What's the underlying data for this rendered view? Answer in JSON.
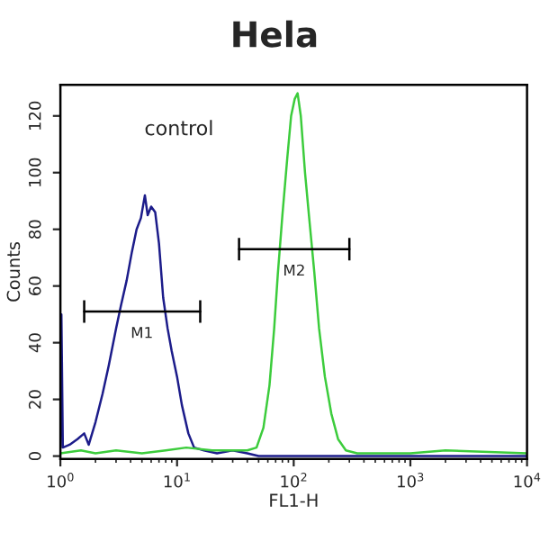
{
  "chart_data": {
    "type": "line",
    "title": "Hela",
    "xlabel": "FL1-H",
    "ylabel": "Counts",
    "log": "x",
    "grid": false,
    "legend": false,
    "xlim": [
      1,
      10000
    ],
    "xticks": [
      {
        "value": 1,
        "label": "10$^{0}$"
      },
      {
        "value": 10,
        "label": "10$^{1}$"
      },
      {
        "value": 100,
        "label": "10$^{2}$"
      },
      {
        "value": 1000,
        "label": "10$^{3}$"
      },
      {
        "value": 10000,
        "label": "10$^{4}$"
      }
    ],
    "ylim": [
      -1,
      131
    ],
    "yticks": [
      0,
      20,
      40,
      60,
      80,
      100,
      120
    ],
    "annotations": [
      "control",
      {
        "text": "M1",
        "x": 5,
        "y": 51
      },
      {
        "text": "M2",
        "x": 101,
        "y": 73
      }
    ],
    "series": [
      {
        "color": "#1c1c8a",
        "x": [
          1.0,
          1.02,
          1.05,
          1.2,
          1.4,
          1.6,
          1.75,
          2.0,
          2.3,
          2.6,
          3.0,
          3.3,
          3.7,
          4.1,
          4.5,
          4.9,
          5.3,
          5.6,
          6.0,
          6.5,
          7.0,
          7.6,
          8.3,
          9.0,
          10.0,
          11.0,
          12.5,
          14,
          17,
          22,
          30,
          40,
          50,
          10000
        ],
        "values": [
          3,
          50,
          3,
          4,
          6,
          8,
          4,
          12,
          22,
          32,
          45,
          53,
          62,
          72,
          80,
          84,
          92,
          85,
          88,
          86,
          75,
          56,
          45,
          37,
          28,
          18,
          8,
          3,
          2,
          1,
          2,
          1,
          0,
          0
        ]
      },
      {
        "color": "#3ccc3c",
        "x": [
          1,
          1.5,
          2,
          3,
          5,
          8,
          12,
          20,
          30,
          40,
          48,
          55,
          62,
          68,
          73,
          80,
          88,
          95,
          102,
          108,
          115,
          125,
          135,
          150,
          165,
          185,
          210,
          240,
          280,
          350,
          1000,
          2000,
          10000
        ],
        "values": [
          1,
          2,
          1,
          2,
          1,
          2,
          3,
          2,
          2,
          2,
          3,
          10,
          25,
          45,
          64,
          85,
          105,
          120,
          126,
          128,
          120,
          100,
          85,
          65,
          45,
          28,
          15,
          6,
          2,
          1,
          1,
          2,
          1
        ]
      },
      {
        "color": "#000000",
        "x": [
          1.6,
          15.8
        ],
        "values": [
          51,
          51
        ],
        "errors": [
          4,
          4
        ]
      },
      {
        "color": "#000000",
        "x": [
          34,
          300
        ],
        "values": [
          73,
          73
        ],
        "errors": [
          4,
          4
        ]
      }
    ]
  }
}
